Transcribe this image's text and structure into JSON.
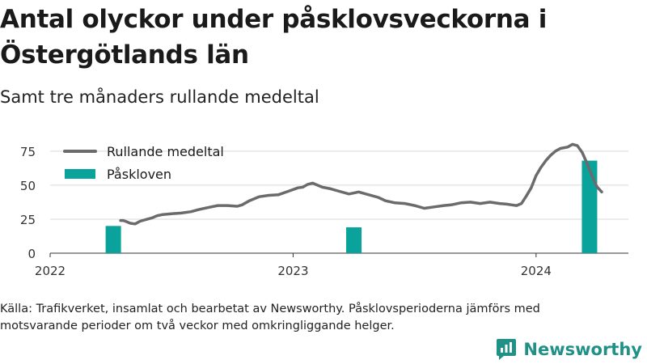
{
  "title": "Antal olyckor under påsklovsveckorna i Östergötlands län",
  "subtitle": "Samt tre månaders rullande medeltal",
  "caption": "Källa: Trafikverket, insamlat och bearbetat av Newsworthy. Påsklovsperioderna jämförs med motsvarande perioder om två veckor med omkringliggande helger.",
  "brand": {
    "name": "Newsworthy",
    "logo_icon": "newsworthy-logo-icon",
    "color": "#1f9187"
  },
  "chart_data": {
    "type": "bar+line",
    "x_unit": "year",
    "xlim": [
      2022.0,
      2024.38
    ],
    "ylim": [
      0,
      85
    ],
    "yticks": [
      0,
      25,
      50,
      75
    ],
    "xticks": [
      2022,
      2023,
      2024
    ],
    "xtick_labels": [
      "2022",
      "2023",
      "2024"
    ],
    "grid": "horizontal",
    "legend_position": "top-left",
    "series": [
      {
        "name": "Rullande medeltal",
        "type": "line",
        "color": "#6b6b6e",
        "points": [
          [
            2022.29,
            24
          ],
          [
            2022.3,
            24
          ],
          [
            2022.31,
            23.5
          ],
          [
            2022.33,
            22
          ],
          [
            2022.35,
            21.5
          ],
          [
            2022.37,
            23.5
          ],
          [
            2022.4,
            25
          ],
          [
            2022.42,
            26
          ],
          [
            2022.44,
            27.5
          ],
          [
            2022.46,
            28.3
          ],
          [
            2022.5,
            29
          ],
          [
            2022.54,
            29.5
          ],
          [
            2022.58,
            30.5
          ],
          [
            2022.61,
            32
          ],
          [
            2022.65,
            33.5
          ],
          [
            2022.69,
            35
          ],
          [
            2022.73,
            35
          ],
          [
            2022.77,
            34.5
          ],
          [
            2022.79,
            35.5
          ],
          [
            2022.82,
            38.5
          ],
          [
            2022.86,
            41.5
          ],
          [
            2022.9,
            42.5
          ],
          [
            2022.94,
            43
          ],
          [
            2022.98,
            45.5
          ],
          [
            2023.02,
            48
          ],
          [
            2023.04,
            48.5
          ],
          [
            2023.06,
            50.5
          ],
          [
            2023.08,
            51.5
          ],
          [
            2023.1,
            50
          ],
          [
            2023.12,
            48.5
          ],
          [
            2023.15,
            47.5
          ],
          [
            2023.19,
            45.5
          ],
          [
            2023.23,
            43.5
          ],
          [
            2023.27,
            45
          ],
          [
            2023.31,
            43
          ],
          [
            2023.35,
            41
          ],
          [
            2023.38,
            38.5
          ],
          [
            2023.42,
            37
          ],
          [
            2023.46,
            36.5
          ],
          [
            2023.5,
            35
          ],
          [
            2023.54,
            33
          ],
          [
            2023.58,
            34
          ],
          [
            2023.62,
            35
          ],
          [
            2023.65,
            35.5
          ],
          [
            2023.69,
            37
          ],
          [
            2023.73,
            37.5
          ],
          [
            2023.77,
            36.5
          ],
          [
            2023.81,
            37.5
          ],
          [
            2023.85,
            36.5
          ],
          [
            2023.88,
            36
          ],
          [
            2023.9,
            35.5
          ],
          [
            2023.92,
            35
          ],
          [
            2023.94,
            36.5
          ],
          [
            2023.96,
            42
          ],
          [
            2023.98,
            48
          ],
          [
            2024.0,
            57
          ],
          [
            2024.02,
            63
          ],
          [
            2024.04,
            68
          ],
          [
            2024.06,
            72
          ],
          [
            2024.08,
            75
          ],
          [
            2024.1,
            77
          ],
          [
            2024.13,
            78
          ],
          [
            2024.15,
            80
          ],
          [
            2024.17,
            79
          ],
          [
            2024.19,
            74
          ],
          [
            2024.21,
            66
          ],
          [
            2024.23,
            57
          ],
          [
            2024.25,
            49
          ],
          [
            2024.27,
            45
          ]
        ]
      },
      {
        "name": "Påskloven",
        "type": "bar",
        "color": "#0aa39b",
        "points": [
          [
            2022.26,
            20
          ],
          [
            2023.25,
            19
          ],
          [
            2024.22,
            68
          ]
        ]
      }
    ]
  }
}
